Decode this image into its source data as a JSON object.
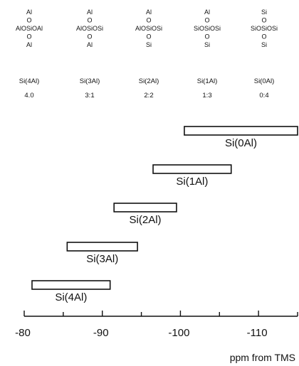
{
  "structures": [
    {
      "lines": [
        "Al",
        "O",
        "AlOSiOAl",
        "O",
        "Al"
      ],
      "label": "Si(4Al)",
      "ratio": "4.0"
    },
    {
      "lines": [
        "Al",
        "O",
        "AlOSiOSi",
        "O",
        "Al"
      ],
      "label": "Si(3Al)",
      "ratio": "3:1"
    },
    {
      "lines": [
        "Al",
        "O",
        "AlOSiOSi",
        "O",
        "Si"
      ],
      "label": "Si(2Al)",
      "ratio": "2:2"
    },
    {
      "lines": [
        "Al",
        "O",
        "SiOSiOSi",
        "O",
        "Si"
      ],
      "label": "Si(1Al)",
      "ratio": "1:3"
    },
    {
      "lines": [
        "Si",
        "O",
        "SiOSiOSi",
        "O",
        "Si"
      ],
      "label": "Si(0Al)",
      "ratio": "0:4"
    }
  ],
  "chart_data": {
    "type": "range-bar",
    "xlabel": "ppm from TMS",
    "xlim": [
      -80,
      -115
    ],
    "ticks": [
      -80,
      -90,
      -100,
      -110
    ],
    "tick_labels": [
      "-80",
      "-90",
      "-100",
      "-110"
    ],
    "series": [
      {
        "name": "Si(0Al)",
        "from": -100.5,
        "to": -115
      },
      {
        "name": "Si(1Al)",
        "from": -96.5,
        "to": -106.5
      },
      {
        "name": "Si(2Al)",
        "from": -91.5,
        "to": -99.5
      },
      {
        "name": "Si(3Al)",
        "from": -85.5,
        "to": -94.5
      },
      {
        "name": "Si(4Al)",
        "from": -81,
        "to": -91
      }
    ],
    "colors": {
      "stroke": "#111111",
      "fill": "#ffffff"
    }
  }
}
